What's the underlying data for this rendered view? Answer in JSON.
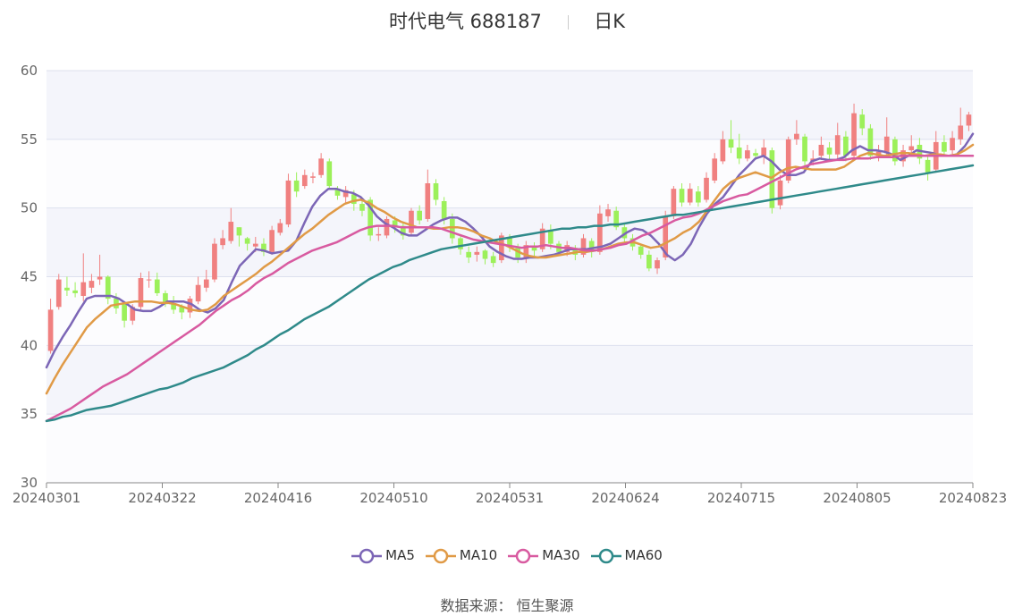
{
  "chart_data": {
    "type": "candlestick",
    "title": "时代电气 688187",
    "period": "日K",
    "source_label": "数据来源：",
    "source_name": "恒生聚源",
    "ylim": [
      30,
      60
    ],
    "yticks": [
      30,
      35,
      40,
      45,
      50,
      55,
      60
    ],
    "x_tick_labels": [
      "20240301",
      "20240322",
      "20240416",
      "20240510",
      "20240531",
      "20240624",
      "20240715",
      "20240805",
      "20240823"
    ],
    "up_color": "#f08080",
    "down_color": "#9cf05a",
    "candles": [
      [
        39.6,
        42.6,
        39.4,
        43.4
      ],
      [
        42.8,
        44.8,
        42.6,
        45.2
      ],
      [
        44.2,
        44.0,
        43.6,
        45.0
      ],
      [
        44.0,
        43.8,
        43.5,
        44.6
      ],
      [
        43.6,
        44.6,
        43.2,
        46.7
      ],
      [
        44.2,
        44.7,
        43.8,
        45.2
      ],
      [
        44.8,
        45.0,
        44.4,
        46.6
      ],
      [
        45.0,
        43.4,
        43.0,
        45.1
      ],
      [
        43.4,
        42.7,
        42.3,
        43.8
      ],
      [
        43.0,
        41.8,
        41.3,
        43.2
      ],
      [
        41.8,
        42.8,
        41.5,
        43.0
      ],
      [
        42.8,
        44.9,
        42.6,
        45.3
      ],
      [
        44.8,
        44.8,
        44.2,
        45.4
      ],
      [
        44.8,
        43.8,
        43.6,
        45.3
      ],
      [
        43.8,
        43.0,
        42.8,
        44.0
      ],
      [
        43.0,
        42.6,
        42.3,
        43.6
      ],
      [
        42.8,
        42.4,
        41.9,
        43.0
      ],
      [
        42.4,
        43.4,
        42.0,
        43.6
      ],
      [
        43.2,
        44.4,
        43.0,
        45.0
      ],
      [
        44.2,
        44.8,
        43.9,
        45.5
      ],
      [
        44.8,
        47.4,
        44.6,
        47.8
      ],
      [
        47.3,
        47.8,
        47.0,
        48.4
      ],
      [
        47.6,
        49.0,
        47.4,
        50.0
      ],
      [
        48.6,
        48.0,
        47.2,
        48.6
      ],
      [
        47.8,
        47.4,
        46.9,
        47.9
      ],
      [
        47.2,
        47.4,
        46.8,
        47.9
      ],
      [
        47.4,
        46.8,
        46.5,
        47.8
      ],
      [
        46.8,
        48.4,
        46.6,
        48.7
      ],
      [
        48.2,
        48.9,
        48.0,
        49.2
      ],
      [
        48.8,
        52.0,
        48.6,
        52.5
      ],
      [
        52.0,
        51.2,
        50.8,
        52.6
      ],
      [
        51.6,
        52.4,
        51.4,
        52.8
      ],
      [
        52.2,
        52.3,
        51.8,
        52.6
      ],
      [
        52.4,
        53.6,
        52.2,
        54.0
      ],
      [
        53.4,
        51.6,
        51.4,
        53.6
      ],
      [
        51.4,
        50.9,
        50.6,
        51.6
      ],
      [
        50.8,
        51.3,
        50.4,
        51.6
      ],
      [
        51.0,
        50.3,
        49.8,
        51.3
      ],
      [
        50.3,
        49.8,
        49.4,
        50.6
      ],
      [
        50.6,
        48.0,
        47.6,
        50.8
      ],
      [
        48.0,
        48.1,
        47.6,
        48.6
      ],
      [
        48.0,
        49.2,
        47.8,
        49.4
      ],
      [
        49.1,
        48.6,
        48.2,
        49.4
      ],
      [
        48.7,
        48.0,
        47.7,
        49.0
      ],
      [
        48.2,
        49.8,
        48.0,
        50.0
      ],
      [
        49.8,
        49.1,
        48.8,
        50.2
      ],
      [
        49.2,
        51.8,
        49.0,
        52.8
      ],
      [
        51.8,
        50.6,
        50.2,
        52.1
      ],
      [
        50.5,
        49.2,
        48.8,
        50.8
      ],
      [
        49.2,
        47.8,
        47.4,
        49.6
      ],
      [
        47.8,
        47.0,
        46.6,
        48.1
      ],
      [
        46.8,
        46.4,
        46.0,
        47.2
      ],
      [
        46.6,
        46.8,
        46.1,
        47.2
      ],
      [
        46.9,
        46.3,
        45.9,
        47.0
      ],
      [
        46.5,
        46.0,
        45.7,
        46.8
      ],
      [
        46.2,
        48.0,
        46.0,
        48.2
      ],
      [
        47.8,
        47.2,
        46.8,
        48.1
      ],
      [
        47.1,
        46.4,
        46.0,
        47.4
      ],
      [
        46.3,
        47.3,
        46.0,
        47.6
      ],
      [
        47.2,
        46.9,
        46.4,
        47.5
      ],
      [
        47.0,
        48.5,
        46.8,
        48.9
      ],
      [
        48.4,
        47.4,
        47.0,
        48.8
      ],
      [
        47.4,
        46.8,
        46.5,
        47.6
      ],
      [
        46.8,
        47.3,
        46.5,
        47.6
      ],
      [
        47.1,
        46.6,
        46.2,
        47.3
      ],
      [
        46.6,
        47.8,
        46.4,
        48.1
      ],
      [
        47.6,
        46.8,
        46.4,
        47.8
      ],
      [
        46.8,
        49.6,
        46.6,
        50.2
      ],
      [
        49.4,
        49.9,
        49.0,
        50.3
      ],
      [
        49.8,
        48.6,
        48.4,
        50.1
      ],
      [
        48.6,
        47.8,
        47.5,
        48.8
      ],
      [
        47.8,
        47.2,
        46.9,
        48.1
      ],
      [
        47.2,
        46.6,
        46.3,
        47.4
      ],
      [
        46.6,
        45.6,
        45.4,
        46.9
      ],
      [
        45.6,
        46.2,
        45.2,
        46.4
      ],
      [
        46.4,
        49.4,
        46.2,
        49.8
      ],
      [
        49.4,
        51.4,
        49.2,
        51.6
      ],
      [
        51.4,
        50.4,
        50.1,
        51.8
      ],
      [
        50.4,
        51.4,
        50.2,
        51.8
      ],
      [
        51.2,
        50.4,
        50.1,
        51.6
      ],
      [
        50.6,
        52.2,
        50.4,
        52.6
      ],
      [
        52.0,
        53.6,
        51.8,
        54.0
      ],
      [
        53.4,
        55.0,
        53.2,
        55.6
      ],
      [
        55.0,
        54.4,
        54.0,
        56.4
      ],
      [
        54.4,
        53.6,
        53.2,
        55.4
      ],
      [
        53.6,
        54.2,
        53.4,
        54.6
      ],
      [
        54.0,
        53.8,
        53.5,
        54.3
      ],
      [
        53.8,
        54.4,
        53.2,
        55.0
      ],
      [
        54.2,
        50.0,
        49.6,
        54.4
      ],
      [
        50.2,
        52.0,
        49.9,
        52.4
      ],
      [
        52.0,
        55.0,
        51.8,
        55.2
      ],
      [
        55.0,
        55.4,
        54.6,
        56.4
      ],
      [
        55.2,
        53.4,
        53.0,
        55.4
      ],
      [
        53.4,
        53.6,
        53.1,
        54.2
      ],
      [
        53.8,
        54.6,
        53.5,
        55.2
      ],
      [
        54.4,
        53.9,
        53.5,
        54.8
      ],
      [
        53.9,
        55.3,
        53.6,
        56.2
      ],
      [
        55.2,
        53.8,
        53.4,
        55.6
      ],
      [
        53.8,
        56.9,
        53.6,
        57.6
      ],
      [
        56.8,
        55.8,
        55.3,
        57.2
      ],
      [
        55.8,
        53.8,
        53.5,
        56.1
      ],
      [
        53.8,
        54.1,
        53.4,
        54.6
      ],
      [
        54.0,
        55.2,
        53.8,
        56.6
      ],
      [
        55.0,
        53.4,
        53.1,
        55.2
      ],
      [
        53.4,
        54.2,
        53.0,
        54.6
      ],
      [
        54.2,
        54.5,
        53.8,
        55.3
      ],
      [
        54.6,
        53.6,
        53.2,
        55.1
      ],
      [
        53.5,
        52.6,
        52.0,
        53.8
      ],
      [
        52.8,
        54.8,
        52.6,
        55.6
      ],
      [
        54.8,
        54.1,
        53.8,
        55.3
      ],
      [
        54.2,
        55.1,
        53.9,
        55.6
      ],
      [
        55.0,
        56.0,
        54.6,
        57.3
      ],
      [
        56.0,
        56.8,
        55.6,
        57.0
      ]
    ],
    "series": [
      {
        "name": "MA5",
        "color": "#7c66b6",
        "values": [
          38.4,
          39.6,
          40.6,
          41.5,
          42.5,
          43.4,
          43.6,
          43.6,
          43.6,
          43.4,
          43.0,
          42.6,
          42.5,
          42.5,
          42.8,
          43.2,
          43.2,
          43.2,
          43.0,
          42.6,
          42.4,
          42.7,
          43.3,
          44.6,
          45.8,
          46.4,
          47.0,
          46.9,
          46.7,
          46.8,
          46.9,
          47.6,
          48.9,
          50.1,
          50.9,
          51.4,
          51.4,
          51.2,
          51.1,
          50.8,
          50.2,
          49.4,
          48.9,
          48.6,
          48.2,
          48.0,
          48.0,
          48.4,
          48.8,
          49.1,
          49.3,
          49.3,
          49.0,
          48.5,
          47.9,
          47.2,
          46.8,
          46.5,
          46.3,
          46.3,
          46.4,
          46.4,
          46.5,
          46.6,
          46.8,
          47.0,
          47.0,
          47.0,
          47.1,
          47.2,
          47.4,
          47.8,
          48.2,
          48.5,
          48.4,
          48.0,
          47.4,
          46.6,
          46.2,
          46.6,
          47.4,
          48.6,
          49.6,
          50.3,
          50.8,
          51.6,
          52.4,
          53.0,
          53.6,
          53.8,
          53.4,
          52.8,
          52.4,
          52.4,
          52.6,
          53.4,
          53.6,
          53.5,
          53.5,
          53.7,
          54.2,
          54.5,
          54.2,
          54.2,
          54.1,
          53.9,
          53.5,
          53.8,
          54.2,
          54.1,
          54.0,
          53.8,
          53.8,
          53.9,
          54.5,
          55.4
        ]
      },
      {
        "name": "MA10",
        "color": "#e09a46",
        "values": [
          36.5,
          37.6,
          38.6,
          39.5,
          40.4,
          41.3,
          41.9,
          42.4,
          42.9,
          43.0,
          43.1,
          43.2,
          43.2,
          43.2,
          43.1,
          43.1,
          43.0,
          42.8,
          42.6,
          42.5,
          42.6,
          43.0,
          43.6,
          44.0,
          44.4,
          44.8,
          45.2,
          45.7,
          46.1,
          46.6,
          47.1,
          47.6,
          48.1,
          48.5,
          49.0,
          49.5,
          49.9,
          50.3,
          50.5,
          50.6,
          50.4,
          50.0,
          49.7,
          49.3,
          49.0,
          48.8,
          48.6,
          48.6,
          48.5,
          48.5,
          48.6,
          48.6,
          48.5,
          48.3,
          48.0,
          47.8,
          47.5,
          47.3,
          47.0,
          46.7,
          46.5,
          46.4,
          46.4,
          46.5,
          46.6,
          46.7,
          46.8,
          46.8,
          46.9,
          47.0,
          47.2,
          47.4,
          47.5,
          47.5,
          47.3,
          47.1,
          47.2,
          47.5,
          47.8,
          48.2,
          48.5,
          49.0,
          49.8,
          50.6,
          51.4,
          51.9,
          52.2,
          52.4,
          52.6,
          52.4,
          52.2,
          52.6,
          52.9,
          53.0,
          52.9,
          52.8,
          52.8,
          52.8,
          52.8,
          53.0,
          53.4,
          53.8,
          54.0,
          53.9,
          53.8,
          53.9,
          54.0,
          54.0,
          53.9,
          53.8,
          53.9,
          53.9,
          53.8,
          53.9,
          54.2,
          54.6
        ]
      },
      {
        "name": "MA30",
        "color": "#d85aa0",
        "values": [
          34.5,
          34.8,
          35.1,
          35.4,
          35.8,
          36.2,
          36.6,
          37.0,
          37.3,
          37.6,
          37.9,
          38.3,
          38.7,
          39.1,
          39.5,
          39.9,
          40.3,
          40.7,
          41.1,
          41.5,
          42.0,
          42.5,
          42.9,
          43.3,
          43.6,
          44.0,
          44.5,
          44.9,
          45.2,
          45.6,
          46.0,
          46.3,
          46.6,
          46.9,
          47.1,
          47.3,
          47.5,
          47.8,
          48.1,
          48.4,
          48.6,
          48.7,
          48.7,
          48.7,
          48.6,
          48.6,
          48.6,
          48.6,
          48.6,
          48.5,
          48.3,
          48.1,
          47.9,
          47.7,
          47.6,
          47.5,
          47.4,
          47.3,
          47.2,
          47.1,
          47.2,
          47.2,
          47.3,
          47.2,
          47.1,
          47.1,
          47.0,
          46.9,
          46.9,
          47.0,
          47.1,
          47.3,
          47.4,
          47.7,
          48.0,
          48.2,
          48.5,
          48.8,
          49.1,
          49.3,
          49.4,
          49.6,
          49.9,
          50.2,
          50.5,
          50.7,
          50.9,
          51.0,
          51.3,
          51.6,
          51.9,
          52.2,
          52.5,
          52.8,
          53.0,
          53.2,
          53.3,
          53.4,
          53.5,
          53.5,
          53.6,
          53.6,
          53.6,
          53.7,
          53.7,
          53.7,
          53.8,
          53.8,
          53.8,
          53.8,
          53.8,
          53.8,
          53.8,
          53.8,
          53.8,
          53.8
        ]
      },
      {
        "name": "MA60",
        "color": "#2f8a8a",
        "values": [
          34.5,
          34.6,
          34.8,
          34.9,
          35.1,
          35.3,
          35.4,
          35.5,
          35.6,
          35.8,
          36.0,
          36.2,
          36.4,
          36.6,
          36.8,
          36.9,
          37.1,
          37.3,
          37.6,
          37.8,
          38.0,
          38.2,
          38.4,
          38.7,
          39.0,
          39.3,
          39.7,
          40.0,
          40.4,
          40.8,
          41.1,
          41.5,
          41.9,
          42.2,
          42.5,
          42.8,
          43.2,
          43.6,
          44.0,
          44.4,
          44.8,
          45.1,
          45.4,
          45.7,
          45.9,
          46.2,
          46.4,
          46.6,
          46.8,
          47.0,
          47.1,
          47.2,
          47.3,
          47.4,
          47.5,
          47.6,
          47.7,
          47.8,
          47.9,
          48.0,
          48.1,
          48.2,
          48.3,
          48.4,
          48.5,
          48.5,
          48.6,
          48.6,
          48.7,
          48.7,
          48.8,
          48.8,
          48.9,
          49.0,
          49.1,
          49.2,
          49.3,
          49.4,
          49.5,
          49.5,
          49.6,
          49.7,
          49.8,
          49.9,
          50.0,
          50.1,
          50.2,
          50.3,
          50.4,
          50.5,
          50.6,
          50.7,
          50.8,
          50.9,
          51.0,
          51.1,
          51.2,
          51.3,
          51.4,
          51.5,
          51.6,
          51.7,
          51.8,
          51.9,
          52.0,
          52.1,
          52.2,
          52.3,
          52.4,
          52.5,
          52.6,
          52.7,
          52.8,
          52.9,
          53.0,
          53.1
        ]
      }
    ]
  }
}
